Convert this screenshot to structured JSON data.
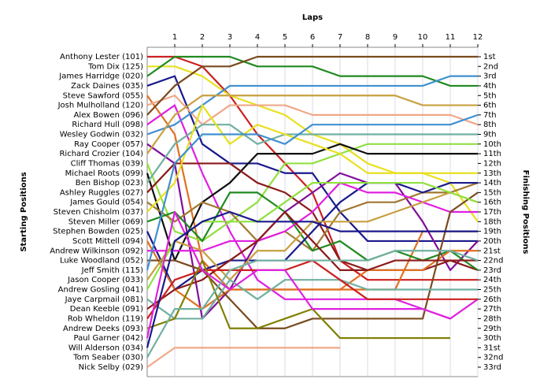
{
  "chart_data": {
    "type": "line",
    "title": "Laps",
    "y_label": "Starting Positions",
    "y2_label": "Finishing Positions",
    "x": [
      0,
      1,
      2,
      3,
      4,
      5,
      6,
      7,
      8,
      9,
      10,
      11,
      12
    ],
    "xlim": [
      0,
      12
    ],
    "xticks": [
      1,
      2,
      3,
      4,
      5,
      6,
      7,
      8,
      9,
      10,
      11,
      12
    ],
    "ylim": [
      1,
      33
    ],
    "grid": true,
    "y2ticks": [
      {
        "value": 1,
        "label": "1st"
      },
      {
        "value": 2,
        "label": "2nd"
      },
      {
        "value": 3,
        "label": "3rd"
      },
      {
        "value": 4,
        "label": "4th"
      },
      {
        "value": 5,
        "label": "5th"
      },
      {
        "value": 6,
        "label": "6th"
      },
      {
        "value": 7,
        "label": "7th"
      },
      {
        "value": 8,
        "label": "8th"
      },
      {
        "value": 9,
        "label": "9th"
      },
      {
        "value": 10,
        "label": "10th"
      },
      {
        "value": 11,
        "label": "11th"
      },
      {
        "value": 12,
        "label": "12th"
      },
      {
        "value": 13,
        "label": "13th"
      },
      {
        "value": 14,
        "label": "14th"
      },
      {
        "value": 15,
        "label": "15th"
      },
      {
        "value": 16,
        "label": "16th"
      },
      {
        "value": 17,
        "label": "17th"
      },
      {
        "value": 18,
        "label": "18th"
      },
      {
        "value": 19,
        "label": "19th"
      },
      {
        "value": 20,
        "label": "20th"
      },
      {
        "value": 21,
        "label": "21st"
      },
      {
        "value": 22,
        "label": "22nd"
      },
      {
        "value": 23,
        "label": "23rd"
      },
      {
        "value": 24,
        "label": "24th"
      },
      {
        "value": 25,
        "label": "25th"
      },
      {
        "value": 26,
        "label": "26th"
      },
      {
        "value": 27,
        "label": "27th"
      },
      {
        "value": 28,
        "label": "28th"
      },
      {
        "value": 29,
        "label": "29th"
      },
      {
        "value": 30,
        "label": "30th"
      },
      {
        "value": 31,
        "label": "31st"
      },
      {
        "value": 32,
        "label": "32nd"
      },
      {
        "value": 33,
        "label": "33rd"
      }
    ],
    "series": [
      {
        "name": "Anthony Lester (101)",
        "color": "#cc2020",
        "values": [
          1,
          1,
          2,
          5,
          9,
          12,
          15,
          22,
          24,
          24,
          24,
          24,
          24
        ]
      },
      {
        "name": "Tom Dix (125)",
        "color": "#e8e020",
        "values": [
          2,
          2,
          3,
          5,
          6,
          7,
          9,
          10,
          12,
          13,
          13,
          14,
          18
        ]
      },
      {
        "name": "James Harridge (020)",
        "color": "#208a20",
        "values": [
          3,
          1,
          1,
          1,
          2,
          2,
          2,
          3,
          3,
          3,
          3,
          4,
          4
        ]
      },
      {
        "name": "Zack Daines (035)",
        "color": "#1a1a8c",
        "values": [
          4,
          3,
          10,
          12,
          12,
          13,
          13,
          17,
          20,
          20,
          20,
          20,
          20
        ]
      },
      {
        "name": "Steve Sawford (055)",
        "color": "#e07020",
        "values": [
          5,
          9,
          22,
          25,
          25,
          25,
          25,
          25,
          25,
          25,
          19,
          19,
          19
        ]
      },
      {
        "name": "Josh Mulholland (120)",
        "color": "#f0a888",
        "values": [
          6,
          5,
          8,
          6,
          6,
          6,
          7,
          7,
          7,
          7,
          7,
          7,
          8
        ]
      },
      {
        "name": "Alex Bowen (096)",
        "color": "#7a4a1e",
        "values": [
          7,
          4,
          2,
          2,
          1,
          1,
          1,
          1,
          1,
          1,
          1,
          1,
          1
        ]
      },
      {
        "name": "Richard Hull (098)",
        "color": "#e020e0",
        "values": [
          8,
          6,
          13,
          19,
          24,
          26,
          26,
          26,
          26,
          26,
          27,
          28,
          26
        ]
      },
      {
        "name": "Wesley Godwin (032)",
        "color": "#4090d0",
        "values": [
          9,
          8,
          6,
          4,
          4,
          4,
          4,
          4,
          4,
          4,
          4,
          3,
          3
        ]
      },
      {
        "name": "Ray Cooper (057)",
        "color": "#80109a",
        "values": [
          10,
          12,
          28,
          25,
          20,
          17,
          15,
          13,
          14,
          14,
          18,
          23,
          20
        ]
      },
      {
        "name": "Richard Crozier (104)",
        "color": "#c8a040",
        "values": [
          11,
          7,
          5,
          5,
          5,
          5,
          5,
          5,
          5,
          5,
          6,
          6,
          6
        ]
      },
      {
        "name": "Cliff Thomas (039)",
        "color": "#90e040",
        "values": [
          12,
          19,
          20,
          18,
          16,
          12,
          12,
          11,
          10,
          10,
          10,
          10,
          10
        ]
      },
      {
        "name": "Michael Roots (099)",
        "color": "#101010",
        "values": [
          13,
          22,
          16,
          14,
          11,
          11,
          11,
          10,
          11,
          11,
          11,
          11,
          11
        ]
      },
      {
        "name": "Ben Bishop (023)",
        "color": "#70b0a0",
        "values": [
          14,
          10,
          8,
          8,
          10,
          9,
          9,
          9,
          9,
          9,
          9,
          9,
          9
        ]
      },
      {
        "name": "Ashley Ruggles (027)",
        "color": "#8b1a1a",
        "values": [
          15,
          12,
          12,
          12,
          14,
          15,
          17,
          22,
          23,
          23,
          23,
          22,
          23
        ]
      },
      {
        "name": "James Gould (054)",
        "color": "#a07830",
        "values": [
          16,
          18,
          16,
          17,
          20,
          19,
          21,
          17,
          16,
          16,
          15,
          15,
          14
        ]
      },
      {
        "name": "Steven Chisholm (037)",
        "color": "#e8e020",
        "values": [
          17,
          14,
          6,
          10,
          8,
          9,
          10,
          11,
          13,
          13,
          13,
          13,
          13
        ]
      },
      {
        "name": "Steven Miller (069)",
        "color": "#208a20",
        "values": [
          18,
          17,
          20,
          15,
          15,
          17,
          21,
          20,
          22,
          21,
          22,
          21,
          23
        ]
      },
      {
        "name": "Stephen Bowden (025)",
        "color": "#1a1a8c",
        "values": [
          19,
          25,
          23,
          22,
          22,
          22,
          19,
          16,
          14,
          14,
          15,
          14,
          14
        ]
      },
      {
        "name": "Scott Mittell (094)",
        "color": "#e07020",
        "values": [
          20,
          25,
          27,
          25,
          25,
          25,
          25,
          25,
          23,
          23,
          23,
          21,
          21
        ]
      },
      {
        "name": "Andrew Wilkinson (092)",
        "color": "#e020e0",
        "values": [
          21,
          21,
          21,
          20,
          20,
          19,
          17,
          14,
          15,
          15,
          16,
          17,
          17
        ]
      },
      {
        "name": "Luke Woodland (052)",
        "color": "#7a4a1e",
        "values": [
          22,
          22,
          23,
          26,
          29,
          29,
          28,
          28,
          28,
          28,
          28,
          17,
          15
        ]
      },
      {
        "name": "Jeff Smith (115)",
        "color": "#4090d0",
        "values": [
          23,
          12,
          9,
          9,
          9,
          10,
          8,
          8,
          8,
          8,
          8,
          8,
          7
        ]
      },
      {
        "name": "Jason Cooper (033)",
        "color": "#c8a040",
        "values": [
          24,
          20,
          21,
          24,
          21,
          21,
          18,
          18,
          18,
          17,
          16,
          15,
          16
        ]
      },
      {
        "name": "Andrew Gosling (041)",
        "color": "#90e040",
        "values": [
          25,
          20,
          18,
          18,
          18,
          16,
          14,
          14,
          14,
          14,
          14,
          15,
          16
        ]
      },
      {
        "name": "Jaye Carpmail (081)",
        "color": "#70b0a0",
        "values": [
          26,
          28,
          28,
          24,
          26,
          24,
          24,
          24,
          25,
          25,
          25,
          25,
          25
        ]
      },
      {
        "name": "Dean Keeble (091)",
        "color": "#8b1a1a",
        "values": [
          27,
          25,
          24,
          22,
          20,
          17,
          20,
          23,
          23,
          22,
          22,
          22,
          22
        ]
      },
      {
        "name": "Rob Wheldon (119)",
        "color": "#cc2020",
        "values": [
          28,
          24,
          23,
          23,
          23,
          23,
          22,
          24,
          26,
          26,
          26,
          26,
          26
        ]
      },
      {
        "name": "Andrew Deeks (093)",
        "color": "#808000",
        "values": [
          29,
          28,
          22,
          29,
          29,
          28,
          27,
          30,
          30,
          30,
          30,
          30,
          null
        ]
      },
      {
        "name": "Paul Garner (042)",
        "color": "#e020e0",
        "values": [
          30,
          17,
          23,
          25,
          23,
          23,
          27,
          27,
          27,
          27,
          27,
          28,
          null
        ]
      },
      {
        "name": "Will Alderson (034)",
        "color": "#1a1a8c",
        "values": [
          31,
          20,
          18,
          17,
          18,
          18,
          18,
          19,
          19,
          19,
          19,
          19,
          19
        ]
      },
      {
        "name": "Tom Seaber (030)",
        "color": "#70b0a0",
        "values": [
          32,
          27,
          27,
          23,
          22,
          22,
          22,
          22,
          22,
          21,
          21,
          21,
          22
        ]
      },
      {
        "name": "Nick Selby (029)",
        "color": "#f0a888",
        "values": [
          33,
          31,
          31,
          31,
          31,
          31,
          31,
          31,
          null,
          null,
          null,
          null,
          null
        ]
      }
    ]
  }
}
